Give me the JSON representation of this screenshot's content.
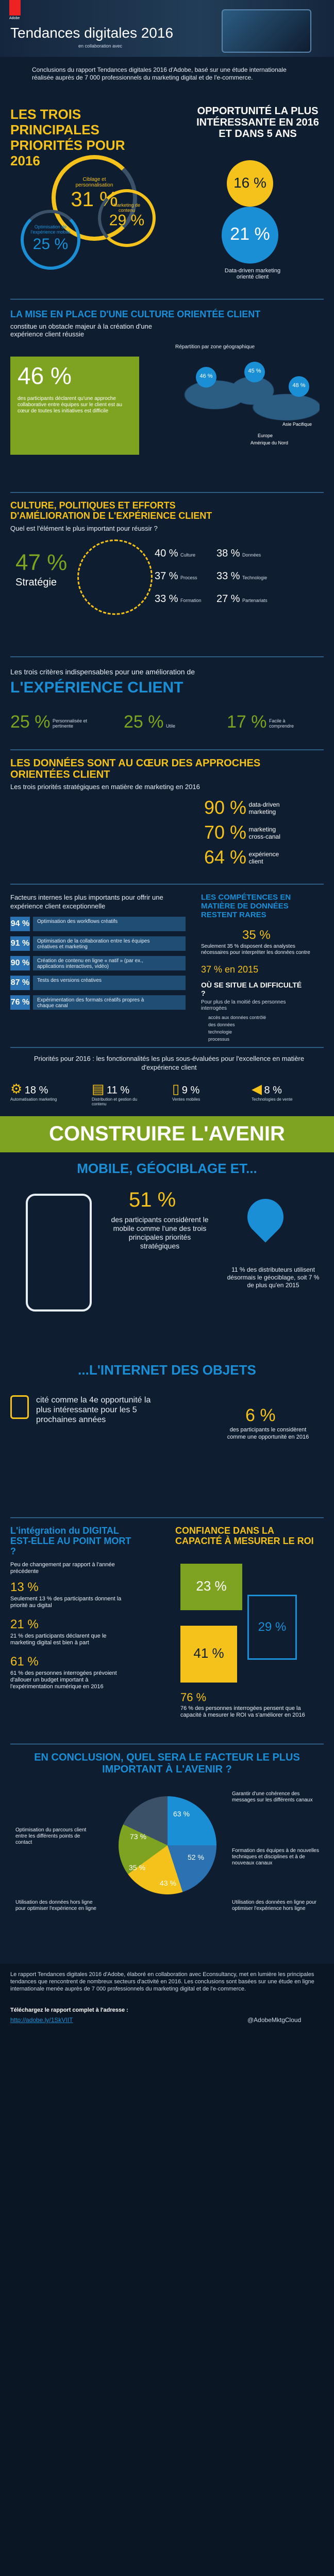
{
  "header": {
    "brand": "Adobe",
    "title": "Tendances digitales 2016",
    "subtitle": "en collaboration avec"
  },
  "intro": {
    "text": "Conclusions du rapport Tendances digitales 2016 d'Adobe, basé sur une étude internationale réalisée auprès de 7 000 professionnels du marketing digital et de l'e-commerce."
  },
  "priorities": {
    "title": "LES TROIS PRINCIPALES PRIORITÉS POUR 2016",
    "items": [
      {
        "value": "31 %",
        "label": "Ciblage et personnalisation"
      },
      {
        "value": "29 %",
        "label": "Marketing de contenu"
      },
      {
        "value": "25 %",
        "label": "Optimisation de l'expérience mobile"
      }
    ],
    "opportunity_title": "OPPORTUNITÉ LA PLUS INTÉRESSANTE EN 2016 ET DANS 5 ANS",
    "opp_2016": "16 %",
    "opp_5ans": "21 %",
    "opp_caption": "Data-driven marketing orienté client"
  },
  "culture": {
    "title": "LA MISE EN PLACE D'UNE CULTURE ORIENTÉE CLIENT",
    "subtitle": "constitue un obstacle majeur à la création d'une expérience client réussie",
    "value": "46 %",
    "desc": "des participants déclarent qu'une approche collaborative entre équipes sur le client est au cœur de toutes les initiatives est difficile",
    "map_caption": "Répartition par zone géographique",
    "regions": [
      "Asie Pacifique",
      "Europe",
      "Amérique du Nord"
    ],
    "region_values": [
      "46 %",
      "45 %",
      "48 %"
    ]
  },
  "factors": {
    "title": "CULTURE, POLITIQUES ET EFFORTS D'AMÉLIORATION DE L'EXPÉRIENCE CLIENT",
    "subtitle": "Quel est l'élément le plus important pour réussir ?",
    "main_value": "47 %",
    "main_label": "Stratégie",
    "items": [
      {
        "value": "40 %",
        "label": "Culture"
      },
      {
        "value": "38 %",
        "label": "Données"
      },
      {
        "value": "37 %",
        "label": "Process"
      },
      {
        "value": "33 %",
        "label": "Technologie"
      },
      {
        "value": "33 %",
        "label": "Formation"
      },
      {
        "value": "27 %",
        "label": "Partenariats"
      }
    ]
  },
  "cx": {
    "title_small": "Les trois critères indispensables pour une amélioration de",
    "title_big": "L'EXPÉRIENCE CLIENT",
    "items": [
      {
        "value": "25 %",
        "label": "Personnalisée et pertinente"
      },
      {
        "value": "25 %",
        "label": "Utile"
      },
      {
        "value": "17 %",
        "label": "Facile à comprendre"
      }
    ]
  },
  "data": {
    "title": "LES DONNÉES SONT AU CŒUR DES APPROCHES ORIENTÉES CLIENT",
    "subtitle": "Les trois priorités stratégiques en matière de marketing en 2016",
    "items": [
      {
        "value": "90 %",
        "label": "data-driven marketing"
      },
      {
        "value": "70 %",
        "label": "marketing cross-canal"
      },
      {
        "value": "64 %",
        "label": "expérience client"
      }
    ]
  },
  "internal": {
    "title": "Facteurs internes les plus importants pour offrir une expérience client exceptionnelle",
    "rows": [
      {
        "value": "94 %",
        "label": "Optimisation des workflows créatifs"
      },
      {
        "value": "91 %",
        "label": "Optimisation de la collaboration entre les équipes créatives et marketing"
      },
      {
        "value": "90 %",
        "label": "Création de contenu en ligne « natif » (par ex., applications interactives, vidéo)"
      },
      {
        "value": "87 %",
        "label": "Tests des versions créatives"
      },
      {
        "value": "76 %",
        "label": "Expérimentation des formats créatifs propres à chaque canal"
      }
    ],
    "skills_title": "LES COMPÉTENCES EN MATIÈRE DE DONNÉES RESTENT RARES",
    "skills_text": "Seulement 35 % disposent des analystes nécessaires pour interpréter les données contre",
    "skills_value": "35 %",
    "skills_compare": "37 % en 2015",
    "difficulty_title": "OÙ SE SITUE LA DIFFICULTÉ ?",
    "difficulty_desc": "Pour plus de la moitié des personnes interrogées",
    "difficulty_items": [
      "accès aux données contrôlé",
      "des données",
      "technologie",
      "processus"
    ]
  },
  "underrated": {
    "title": "Priorités pour 2016 : les fonctionnalités les plus sous-évaluées pour l'excellence en matière d'expérience client",
    "items": [
      {
        "value": "18 %",
        "label": "Automatisation marketing"
      },
      {
        "value": "11 %",
        "label": "Distribution et gestion du contenu"
      },
      {
        "value": "9 %",
        "label": "Ventes mobiles"
      },
      {
        "value": "8 %",
        "label": "Technologies de vente"
      }
    ]
  },
  "future": {
    "banner": "CONSTRUIRE L'AVENIR",
    "mobile_title": "MOBILE, GÉOCIBLAGE ET...",
    "mobile_value": "51 %",
    "mobile_text": "des participants considèrent le mobile comme l'une des trois principales priorités stratégiques",
    "geo_text": "11 % des distributeurs utilisent désormais le géociblage, soit 7 % de plus qu'en 2015",
    "iot_title": "...L'INTERNET DES OBJETS",
    "iot_text": "cité comme la 4e opportunité la plus intéressante pour les 5 prochaines années",
    "iot_value": "6 %",
    "iot_text2": "des participants le considèrent comme une opportunité en 2016"
  },
  "digital": {
    "title": "L'intégration du DIGITAL EST-ELLE AU POINT MORT ?",
    "text1": "Peu de changement par rapport à l'année précédente",
    "text2": "Seulement 13 % des participants donnent la priorité au digital",
    "value2": "13 %",
    "text3": "21 % des participants déclarent que le marketing digital est bien à part",
    "value3": "21 %",
    "text4": "61 % des personnes interrogées prévoient d'allouer un budget important à l'expérimentation numérique en 2016",
    "value4": "61 %",
    "confidence_title": "CONFIANCE DANS LA CAPACITÉ À MESURER LE ROI",
    "conf_a": "23 %",
    "conf_b": "29 %",
    "conf_c": "41 %",
    "conf_text": "76 % des personnes interrogées pensent que la capacité à mesurer le ROI va s'améliorer en 2016",
    "conf_value": "76 %"
  },
  "conclusion": {
    "title": "EN CONCLUSION, QUEL SERA LE FACTEUR LE PLUS IMPORTANT À L'AVENIR ?",
    "slices": [
      {
        "value": "63 %",
        "label": "Garantir d'une cohérence des messages sur les différents canaux"
      },
      {
        "value": "52 %",
        "label": "Formation des équipes à de nouvelles techniques et disciplines et à de nouveaux canaux"
      },
      {
        "value": "43 %",
        "label": "Utilisation des données en ligne pour optimiser l'expérience hors ligne"
      },
      {
        "value": "35 %",
        "label": "Utilisation des données hors ligne pour optimiser l'expérience en ligne"
      },
      {
        "value": "73 %",
        "label": "Optimisation du parcours client entre les différents points de contact"
      }
    ]
  },
  "footer": {
    "text": "Le rapport Tendances digitales 2016 d'Adobe, élaboré en collaboration avec Econsultancy, met en lumière les principales tendances que rencontrent de nombreux secteurs d'activité en 2016. Les conclusions sont basées sur une étude en ligne internationale menée auprès de 7 000 professionnels du marketing digital et de l'e-commerce.",
    "download": "Téléchargez le rapport complet à l'adresse :",
    "link": "http://adobe.ly/1SkVIIT",
    "handle": "@AdobeMktgCloud"
  },
  "colors": {
    "bg": "#0f1d30",
    "accent": "#f4c21a",
    "blue": "#1a8fd6",
    "dark_blue": "#1f4d74"
  }
}
